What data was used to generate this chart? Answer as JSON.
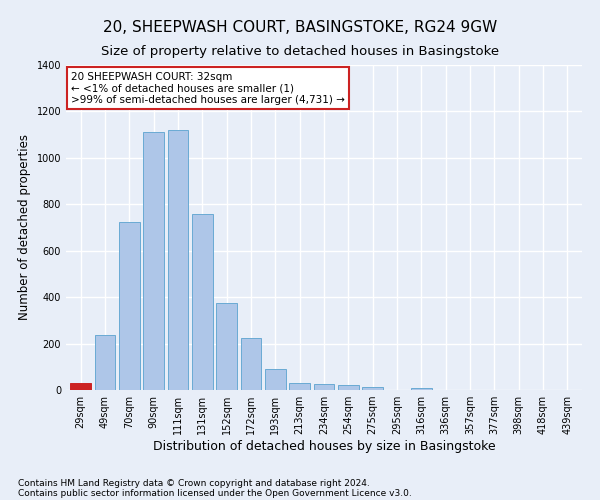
{
  "title": "20, SHEEPWASH COURT, BASINGSTOKE, RG24 9GW",
  "subtitle": "Size of property relative to detached houses in Basingstoke",
  "xlabel": "Distribution of detached houses by size in Basingstoke",
  "ylabel": "Number of detached properties",
  "footnote1": "Contains HM Land Registry data © Crown copyright and database right 2024.",
  "footnote2": "Contains public sector information licensed under the Open Government Licence v3.0.",
  "categories": [
    "29sqm",
    "49sqm",
    "70sqm",
    "90sqm",
    "111sqm",
    "131sqm",
    "152sqm",
    "172sqm",
    "193sqm",
    "213sqm",
    "234sqm",
    "254sqm",
    "275sqm",
    "295sqm",
    "316sqm",
    "336sqm",
    "357sqm",
    "377sqm",
    "398sqm",
    "418sqm",
    "439sqm"
  ],
  "values": [
    30,
    235,
    725,
    1110,
    1120,
    760,
    375,
    225,
    90,
    30,
    25,
    20,
    15,
    0,
    10,
    0,
    0,
    0,
    0,
    0,
    0
  ],
  "bar_color": "#aec6e8",
  "bar_edge_color": "#6aaad4",
  "highlight_bar_index": 0,
  "highlight_bar_color": "#cc2222",
  "highlight_bar_edge_color": "#cc2222",
  "ylim": [
    0,
    1400
  ],
  "yticks": [
    0,
    200,
    400,
    600,
    800,
    1000,
    1200,
    1400
  ],
  "annotation_line1": "20 SHEEPWASH COURT: 32sqm",
  "annotation_line2": "← <1% of detached houses are smaller (1)",
  "annotation_line3": ">99% of semi-detached houses are larger (4,731) →",
  "annotation_box_color": "#ffffff",
  "annotation_box_edge_color": "#cc2222",
  "background_color": "#e8eef8",
  "grid_color": "#ffffff",
  "title_fontsize": 11,
  "subtitle_fontsize": 9.5,
  "ylabel_fontsize": 8.5,
  "xlabel_fontsize": 9,
  "tick_fontsize": 7,
  "annotation_fontsize": 7.5,
  "footnote_fontsize": 6.5
}
